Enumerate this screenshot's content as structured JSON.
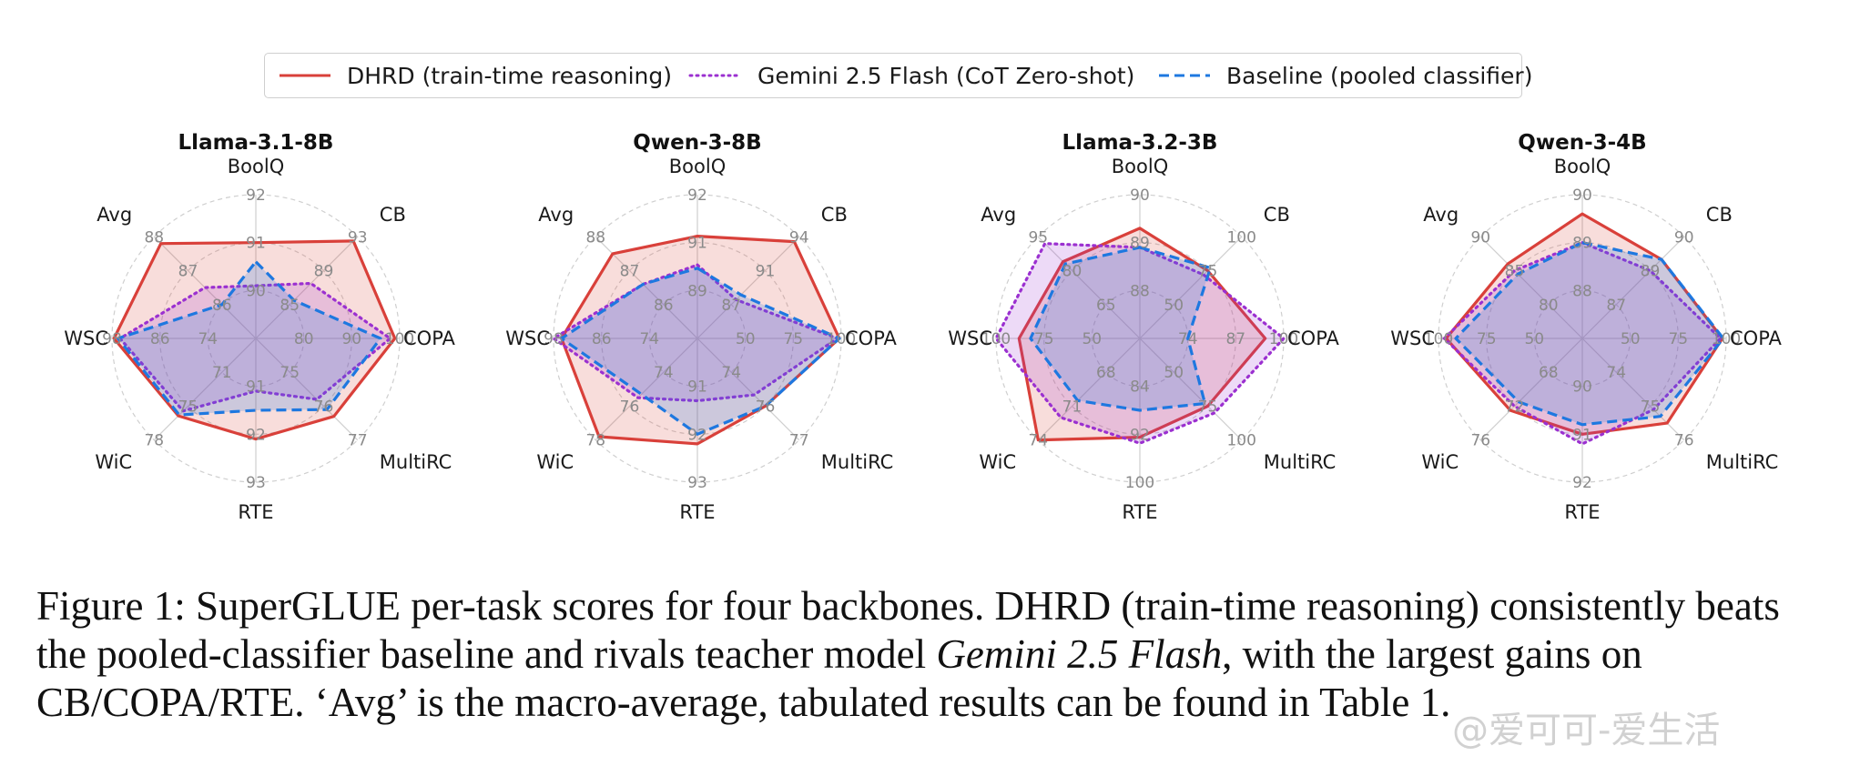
{
  "legend": [
    {
      "label": "DHRD (train-time reasoning)",
      "color": "#d9403a",
      "dash": "solid"
    },
    {
      "label": "Gemini 2.5 Flash (CoT Zero-shot)",
      "color": "#9b30d0",
      "dash": "dotted"
    },
    {
      "label": "Baseline (pooled classifier)",
      "color": "#1e78e0",
      "dash": "dashed"
    }
  ],
  "chart_data": [
    {
      "type": "radar",
      "title": "Llama-3.1-8B",
      "axes": [
        "BoolQ",
        "CB",
        "COPA",
        "MultiRC",
        "RTE",
        "WiC",
        "WSC",
        "Avg"
      ],
      "axis_ticks": [
        [
          "90",
          "91",
          "92"
        ],
        [
          "85",
          "89",
          "93"
        ],
        [
          "80",
          "90",
          "100"
        ],
        [
          "75",
          "76",
          "77"
        ],
        [
          "91",
          "92",
          "93"
        ],
        [
          "71",
          "75",
          "78"
        ],
        [
          "74",
          "86",
          "98"
        ],
        [
          "86",
          "87",
          "88"
        ]
      ],
      "series": [
        {
          "name": "DHRD (train-time reasoning)",
          "values": [
            91.0,
            92.5,
            99.0,
            76.3,
            92.1,
            75.5,
            97.5,
            87.8
          ]
        },
        {
          "name": "Gemini 2.5 Flash (CoT Zero-shot)",
          "values": [
            90.1,
            87.5,
            98.0,
            75.8,
            91.1,
            75.0,
            96.0,
            86.5
          ]
        },
        {
          "name": "Baseline (pooled classifier)",
          "values": [
            90.6,
            85.5,
            96.0,
            76.1,
            91.5,
            75.4,
            96.5,
            86.0
          ]
        }
      ]
    },
    {
      "type": "radar",
      "title": "Qwen-3-8B",
      "axes": [
        "BoolQ",
        "CB",
        "COPA",
        "MultiRC",
        "RTE",
        "WiC",
        "WSC",
        "Avg"
      ],
      "axis_ticks": [
        [
          "89",
          "91",
          "92"
        ],
        [
          "87",
          "91",
          "94"
        ],
        [
          "50",
          "75",
          "100"
        ],
        [
          "74",
          "76",
          "77"
        ],
        [
          "91",
          "92",
          "93"
        ],
        [
          "74",
          "76",
          "78"
        ],
        [
          "74",
          "86",
          "98"
        ],
        [
          "86",
          "87",
          "88"
        ]
      ],
      "series": [
        {
          "name": "DHRD (train-time reasoning)",
          "values": [
            90.7,
            93.5,
            99.0,
            75.5,
            92.2,
            77.8,
            96.0,
            87.5
          ]
        },
        {
          "name": "Gemini 2.5 Flash (CoT Zero-shot)",
          "values": [
            89.8,
            87.5,
            98.0,
            75.0,
            91.3,
            75.5,
            98.0,
            86.6
          ]
        },
        {
          "name": "Baseline (pooled classifier)",
          "values": [
            89.7,
            88.0,
            99.0,
            75.5,
            92.0,
            75.3,
            96.0,
            86.6
          ]
        }
      ]
    },
    {
      "type": "radar",
      "title": "Llama-3.2-3B",
      "axes": [
        "BoolQ",
        "CB",
        "COPA",
        "MultiRC",
        "RTE",
        "WiC",
        "WSC",
        "Avg"
      ],
      "axis_ticks": [
        [
          "88",
          "89",
          "90"
        ],
        [
          "50",
          "75",
          "100"
        ],
        [
          "74",
          "87",
          "100"
        ],
        [
          "50",
          "75",
          "100"
        ],
        [
          "84",
          "92",
          "100"
        ],
        [
          "68",
          "71",
          "74"
        ],
        [
          "50",
          "75",
          "100"
        ],
        [
          "65",
          "80",
          "95"
        ]
      ],
      "series": [
        {
          "name": "DHRD (train-time reasoning)",
          "values": [
            89.3,
            75.0,
            95.0,
            75.0,
            92.5,
            74.0,
            88.0,
            84.0
          ]
        },
        {
          "name": "Gemini 2.5 Flash (CoT Zero-shot)",
          "values": [
            88.9,
            72.0,
            100.0,
            80.0,
            93.5,
            72.0,
            100.0,
            92.0
          ]
        },
        {
          "name": "Baseline (pooled classifier)",
          "values": [
            88.9,
            77.0,
            74.0,
            73.0,
            88.0,
            70.5,
            82.0,
            83.0
          ]
        }
      ]
    },
    {
      "type": "radar",
      "title": "Qwen-3-4B",
      "axes": [
        "BoolQ",
        "CB",
        "COPA",
        "MultiRC",
        "RTE",
        "WiC",
        "WSC",
        "Avg"
      ],
      "axis_ticks": [
        [
          "88",
          "89",
          "90"
        ],
        [
          "87",
          "89",
          "90"
        ],
        [
          "50",
          "75",
          "100"
        ],
        [
          "74",
          "75",
          "76"
        ],
        [
          "90",
          "91",
          "92"
        ],
        [
          "68",
          "72",
          "76"
        ],
        [
          "50",
          "75",
          "100"
        ],
        [
          "80",
          "85",
          "90"
        ]
      ],
      "series": [
        {
          "name": "DHRD (train-time reasoning)",
          "values": [
            89.6,
            89.0,
            98.0,
            75.5,
            91.0,
            72.5,
            96.0,
            86.0
          ]
        },
        {
          "name": "Gemini 2.5 Flash (CoT Zero-shot)",
          "values": [
            89.0,
            88.5,
            97.0,
            75.1,
            91.2,
            72.0,
            97.0,
            85.0
          ]
        },
        {
          "name": "Baseline (pooled classifier)",
          "values": [
            89.0,
            89.0,
            98.5,
            75.3,
            90.8,
            71.5,
            91.0,
            84.5
          ]
        }
      ]
    }
  ],
  "caption": {
    "prefix": "Figure 1: SuperGLUE per-task scores for four backbones. DHRD (train-time reasoning) consistently beats the pooled-classifier baseline and rivals teacher model ",
    "italic": "Gemini 2.5 Flash",
    "suffix": ", with the largest gains on CB/COPA/RTE. ‘Avg’ is the macro-average, tabulated results can be found in Table 1."
  },
  "watermark": "@爱可可-爱生活"
}
